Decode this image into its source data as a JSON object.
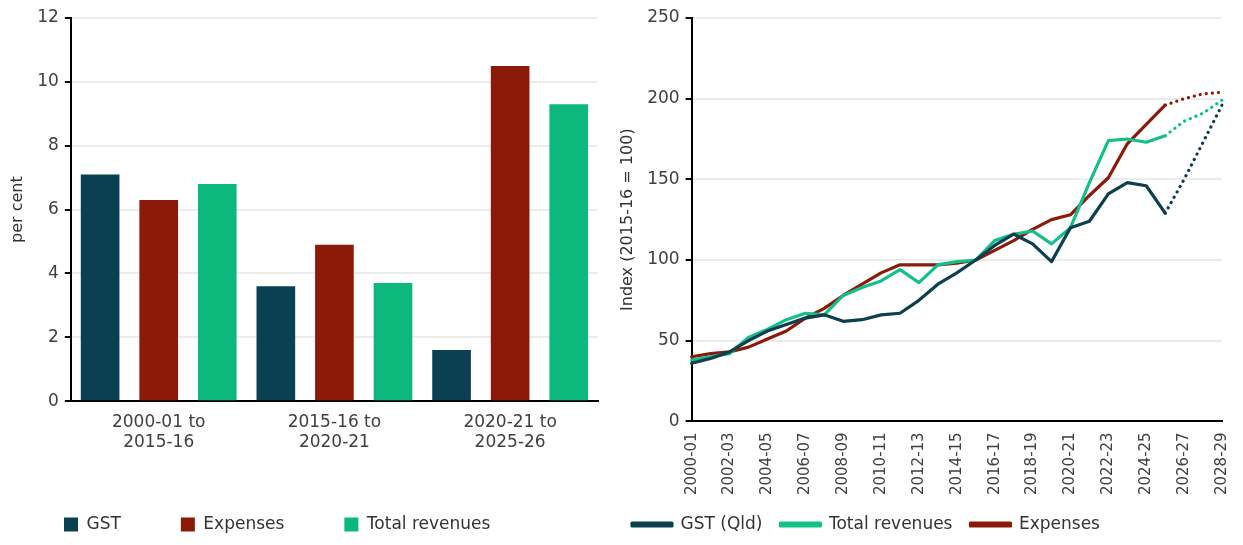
{
  "chart_data": [
    {
      "type": "bar",
      "ylabel": "per cent",
      "categories": [
        "2000-01 to\n2015-16",
        "2015-16 to\n2020-21",
        "2020-21 to\n2025-26"
      ],
      "ylim": [
        0,
        12
      ],
      "yticks": [
        0,
        2,
        4,
        6,
        8,
        10,
        12
      ],
      "grid": "y",
      "legend": "bottom",
      "series": [
        {
          "name": "GST",
          "color": "#0b3f52",
          "values": [
            7.1,
            3.6,
            1.6
          ]
        },
        {
          "name": "Expenses",
          "color": "#8b1a0b",
          "values": [
            6.3,
            4.9,
            10.5
          ]
        },
        {
          "name": "Total revenues",
          "color": "#0db87d",
          "values": [
            6.8,
            3.7,
            9.3
          ]
        }
      ]
    },
    {
      "type": "line",
      "ylabel": "Index (2015-16 = 100)",
      "categories": [
        "2000-01",
        null,
        "2002-03",
        null,
        "2004-05",
        null,
        "2006-07",
        null,
        "2008-09",
        null,
        "2010-11",
        null,
        "2012-13",
        null,
        "2014-15",
        null,
        "2016-17",
        null,
        "2018-19",
        null,
        "2020-21",
        null,
        "2022-23",
        null,
        "2024-25",
        null,
        "2026-27",
        null,
        "2028-29"
      ],
      "ylim": [
        0,
        250
      ],
      "yticks": [
        0,
        50,
        100,
        150,
        200,
        250
      ],
      "grid": "y",
      "legend": "bottom",
      "marker": "none",
      "series": [
        {
          "name": "GST (Qld)",
          "color": "#0d3f50",
          "line_style": "solid",
          "values": [
            36,
            39,
            43,
            50,
            56,
            60,
            64,
            66,
            62,
            63,
            66,
            67,
            75,
            85,
            92,
            100,
            109,
            116,
            110,
            99,
            120,
            124,
            141,
            148,
            146,
            129,
            null,
            null,
            null
          ]
        },
        {
          "name": "Total revenues",
          "color": "#12c08a",
          "line_style": "solid",
          "values": [
            38,
            40,
            42,
            52,
            57,
            63,
            67,
            66,
            78,
            83,
            87,
            94,
            86,
            97,
            99,
            100,
            112,
            116,
            118,
            110,
            120,
            148,
            174,
            175,
            173,
            177,
            null,
            null,
            null
          ]
        },
        {
          "name": "Expenses",
          "color": "#8b1a0b",
          "line_style": "solid",
          "values": [
            40,
            42,
            43,
            46,
            51,
            56,
            64,
            70,
            78,
            85,
            92,
            97,
            97,
            97,
            98,
            100,
            106,
            112,
            119,
            125,
            128,
            140,
            151,
            172,
            184,
            196,
            null,
            null,
            null
          ]
        },
        {
          "color": "#0d3f50",
          "line_style": "dotted",
          "values": [
            null,
            null,
            null,
            null,
            null,
            null,
            null,
            null,
            null,
            null,
            null,
            null,
            null,
            null,
            null,
            null,
            null,
            null,
            null,
            null,
            null,
            null,
            null,
            null,
            null,
            129,
            150,
            173,
            196
          ]
        },
        {
          "color": "#12c08a",
          "line_style": "dotted",
          "values": [
            null,
            null,
            null,
            null,
            null,
            null,
            null,
            null,
            null,
            null,
            null,
            null,
            null,
            null,
            null,
            null,
            null,
            null,
            null,
            null,
            null,
            null,
            null,
            null,
            null,
            177,
            186,
            191,
            199
          ]
        },
        {
          "color": "#8b1a0b",
          "line_style": "dotted",
          "values": [
            null,
            null,
            null,
            null,
            null,
            null,
            null,
            null,
            null,
            null,
            null,
            null,
            null,
            null,
            null,
            null,
            null,
            null,
            null,
            null,
            null,
            null,
            null,
            null,
            null,
            196,
            200,
            203,
            204
          ]
        }
      ]
    }
  ]
}
